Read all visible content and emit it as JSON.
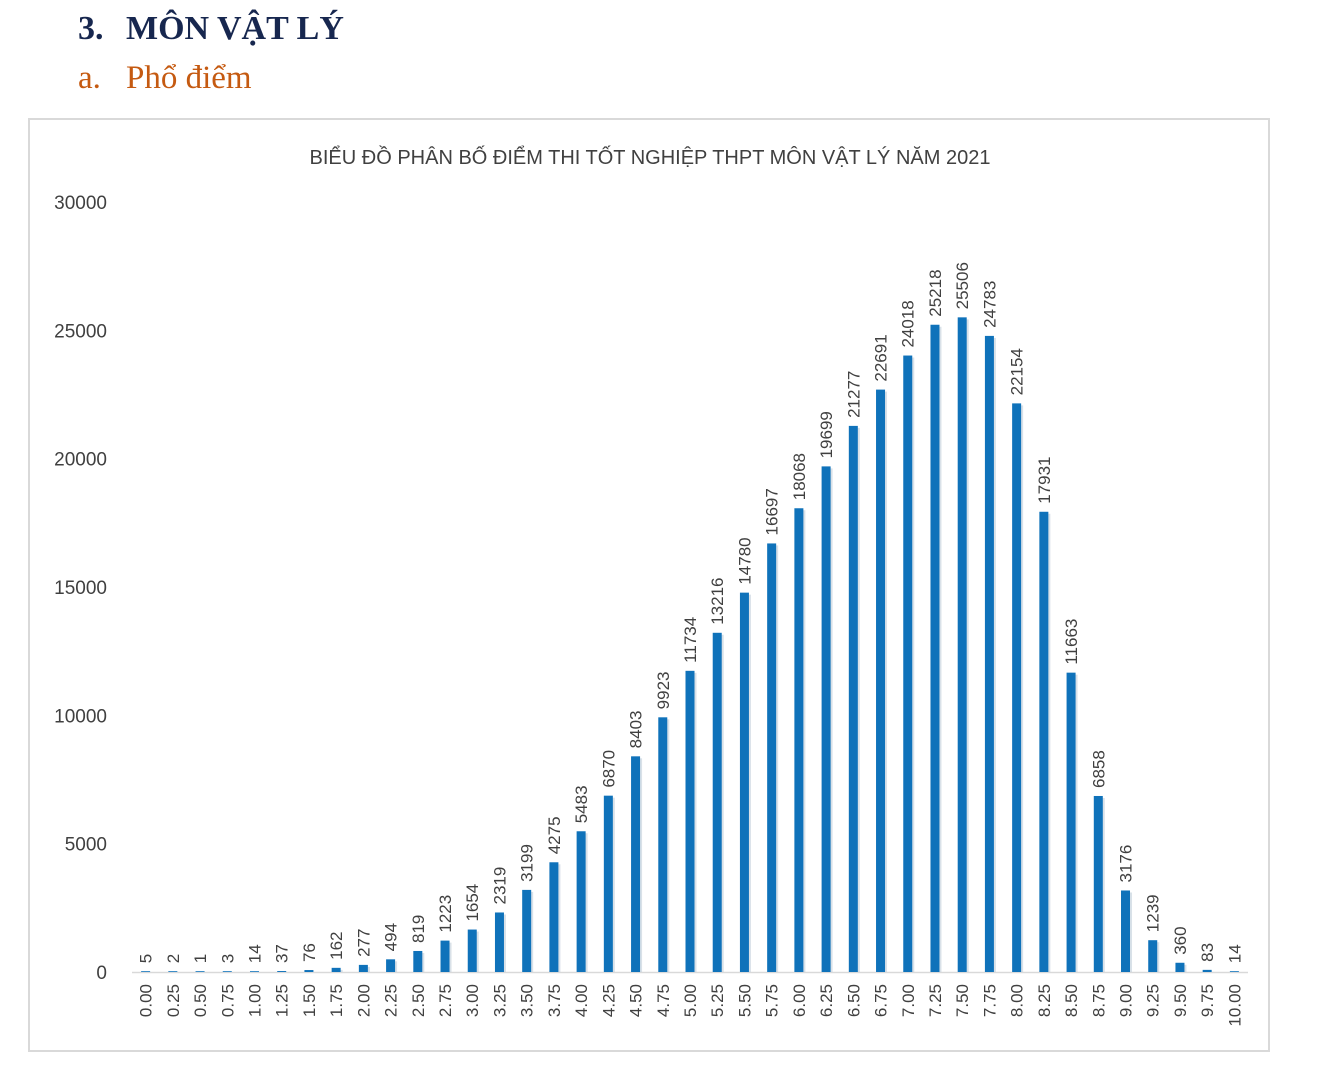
{
  "heading": {
    "number": "3.",
    "title": "MÔN VẬT LÝ"
  },
  "subheading": {
    "number": "a.",
    "title": "Phổ điểm"
  },
  "colors": {
    "heading": "#17274f",
    "subheading": "#c55a11",
    "bar": "#0f72ba",
    "axis": "#d9d9d9",
    "text": "#404040"
  },
  "chart_data": {
    "type": "bar",
    "title": "BIỂU ĐỒ PHÂN BỐ ĐIỂM THI TỐT NGHIỆP THPT MÔN VẬT LÝ NĂM 2021",
    "xlabel": "",
    "ylabel": "",
    "ylim": [
      0,
      30000
    ],
    "yticks": [
      "0",
      "5000",
      "10000",
      "15000",
      "20000",
      "25000",
      "30000"
    ],
    "grid": false,
    "legend": "none",
    "categories": [
      "0.00",
      "0.25",
      "0.50",
      "0.75",
      "1.00",
      "1.25",
      "1.50",
      "1.75",
      "2.00",
      "2.25",
      "2.50",
      "2.75",
      "3.00",
      "3.25",
      "3.50",
      "3.75",
      "4.00",
      "4.25",
      "4.50",
      "4.75",
      "5.00",
      "5.25",
      "5.50",
      "5.75",
      "6.00",
      "6.25",
      "6.50",
      "6.75",
      "7.00",
      "7.25",
      "7.50",
      "7.75",
      "8.00",
      "8.25",
      "8.50",
      "8.75",
      "9.00",
      "9.25",
      "9.50",
      "9.75",
      "10.00"
    ],
    "values": [
      5,
      2,
      1,
      3,
      14,
      37,
      76,
      162,
      277,
      494,
      819,
      1223,
      1654,
      2319,
      3199,
      4275,
      5483,
      6870,
      8403,
      9923,
      11734,
      13216,
      14780,
      16697,
      18068,
      19699,
      21277,
      22691,
      24018,
      25218,
      25506,
      24783,
      22154,
      17931,
      11663,
      6858,
      3176,
      1239,
      360,
      83,
      14
    ]
  }
}
